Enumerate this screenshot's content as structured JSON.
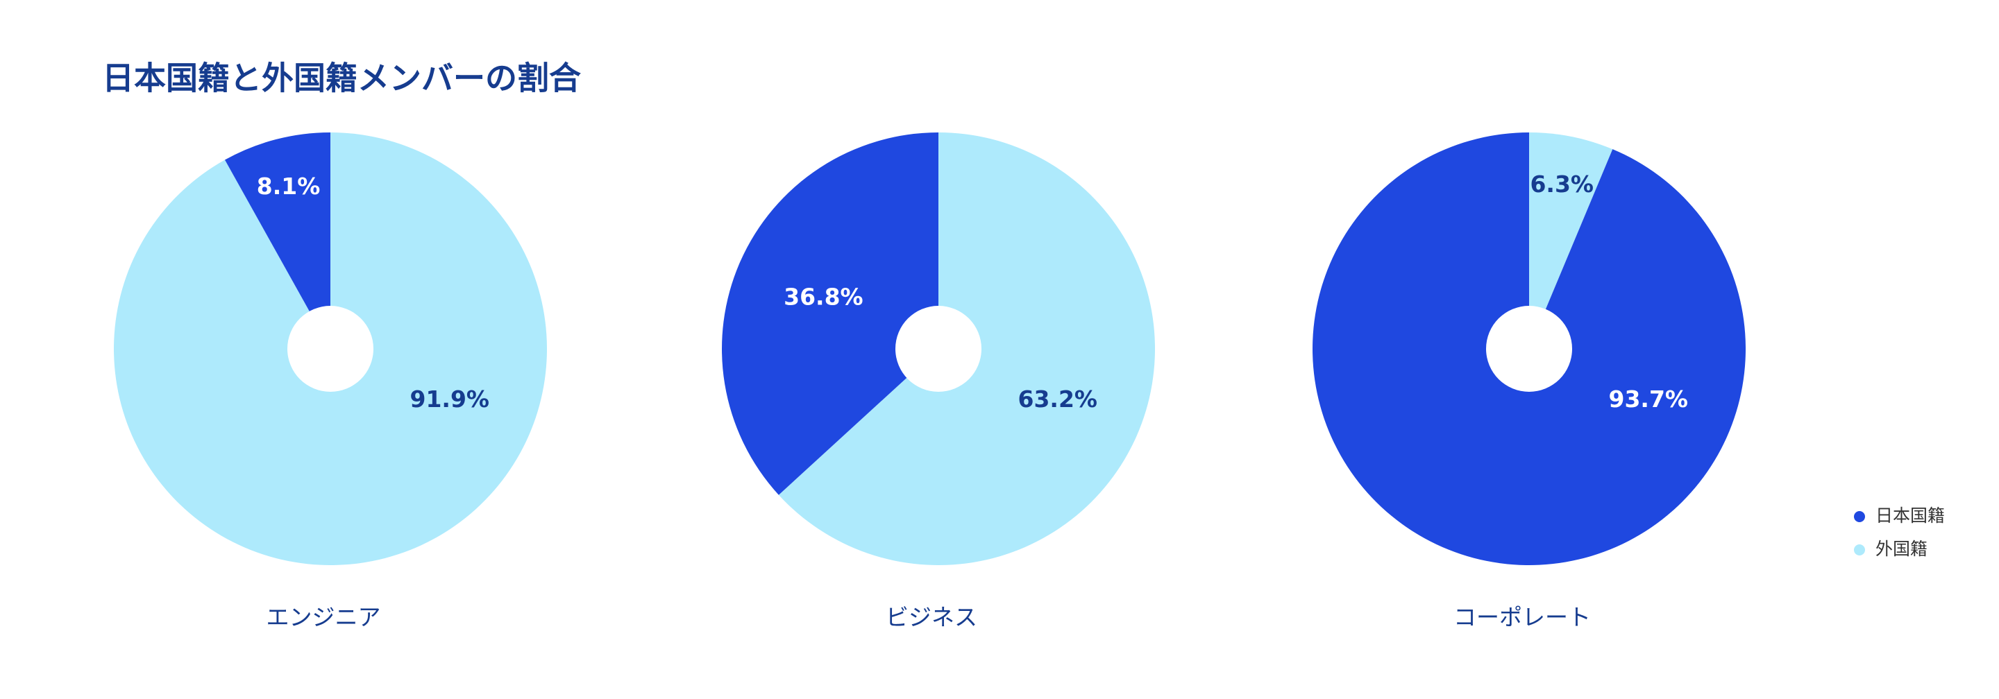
{
  "title": "日本国籍と外国籍メンバーの割合",
  "legend": [
    {
      "name": "日本国籍",
      "color": "#1f48e0"
    },
    {
      "name": "外国籍",
      "color": "#aeeafc"
    }
  ],
  "chart_data": [
    {
      "type": "pie",
      "label": "エンジニア",
      "values": [
        8.1,
        91.9
      ],
      "value_labels": [
        "8.1%",
        "91.9%"
      ]
    },
    {
      "type": "pie",
      "label": "ビジネス",
      "values": [
        36.8,
        63.2
      ],
      "value_labels": [
        "36.8%",
        "63.2%"
      ]
    },
    {
      "type": "pie",
      "label": "コーポレート",
      "values": [
        93.7,
        6.3
      ],
      "value_labels": [
        "93.7%",
        "6.3%"
      ]
    }
  ]
}
